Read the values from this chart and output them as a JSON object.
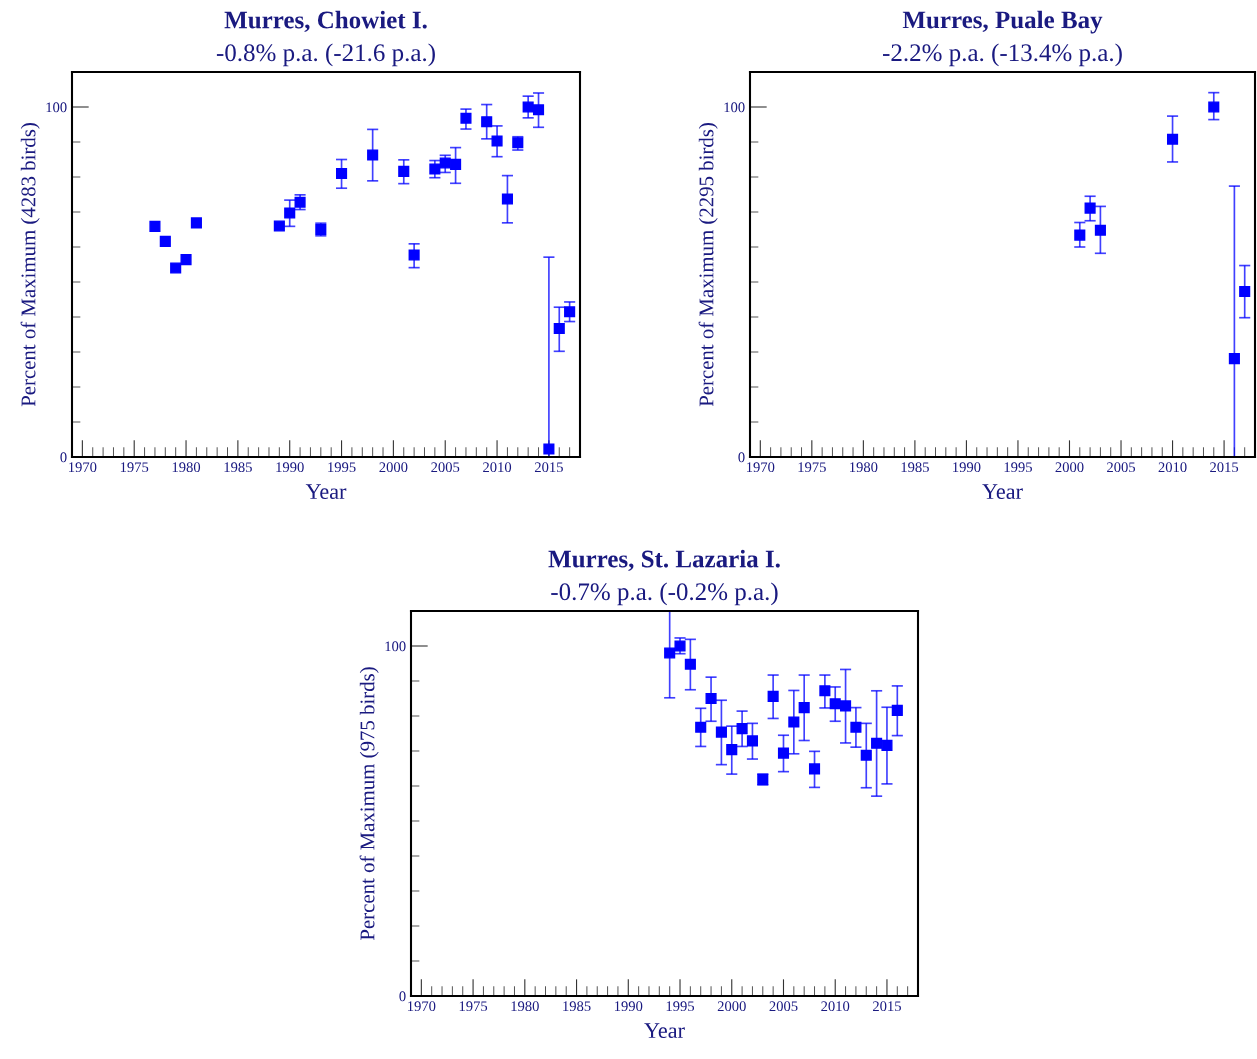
{
  "chart_data": [
    {
      "type": "scatter",
      "title": "Murres, Chowiet I.",
      "subtitle": "-0.8% p.a. (-21.6 p.a.)",
      "xlabel": "Year",
      "ylabel": "Percent of Maximum (4283 birds)",
      "color": "#0000ff",
      "marker": "square",
      "grid": false,
      "legend": false,
      "x": [
        1977,
        1978,
        1979,
        1980,
        1981,
        1989,
        1990,
        1991,
        1993,
        1995,
        1998,
        2001,
        2002,
        2004,
        2005,
        2006,
        2007,
        2009,
        2010,
        2011,
        2012,
        2013,
        2014,
        2015,
        2016,
        2017
      ],
      "values": [
        65.9,
        61.6,
        54.0,
        56.4,
        66.9,
        66.0,
        69.7,
        72.8,
        65.0,
        81.0,
        86.3,
        81.6,
        57.7,
        82.3,
        84.0,
        83.6,
        96.8,
        95.8,
        90.3,
        73.7,
        89.8,
        100,
        99.2,
        2.3,
        36.7,
        41.5
      ],
      "errors": [
        null,
        null,
        null,
        null,
        null,
        null,
        [
          65.9,
          73.4
        ],
        [
          70.7,
          74.9
        ],
        [
          63.2,
          66.8
        ],
        [
          76.8,
          85.0
        ],
        [
          78.9,
          93.6
        ],
        [
          78.1,
          84.9
        ],
        [
          54.1,
          60.9
        ],
        [
          79.8,
          84.7
        ],
        [
          81.3,
          86.2
        ],
        [
          78.2,
          88.4
        ],
        [
          93.7,
          99.4
        ],
        [
          90.9,
          100.7
        ],
        [
          85.8,
          94.6
        ],
        [
          66.9,
          80.4
        ],
        [
          87.7,
          91.5
        ],
        [
          96.9,
          103.1
        ],
        [
          94.2,
          104.0
        ],
        [
          0,
          57.1
        ],
        [
          30.2,
          42.8
        ],
        [
          38.7,
          44.3
        ]
      ],
      "xlim": [
        1969,
        2018
      ],
      "ylim": [
        0,
        110
      ],
      "xticks": [
        1970,
        {
          "value": 1971,
          "label": null
        },
        {
          "value": 1972,
          "label": null
        },
        {
          "value": 1973,
          "label": null
        },
        {
          "value": 1974,
          "label": null
        },
        1975,
        {
          "value": 1976,
          "label": null
        },
        {
          "value": 1977,
          "label": null
        },
        {
          "value": 1978,
          "label": null
        },
        {
          "value": 1979,
          "label": null
        },
        1980,
        {
          "value": 1981,
          "label": null
        },
        {
          "value": 1982,
          "label": null
        },
        {
          "value": 1983,
          "label": null
        },
        {
          "value": 1984,
          "label": null
        },
        1985,
        {
          "value": 1986,
          "label": null
        },
        {
          "value": 1987,
          "label": null
        },
        {
          "value": 1988,
          "label": null
        },
        {
          "value": 1989,
          "label": null
        },
        1990,
        {
          "value": 1991,
          "label": null
        },
        {
          "value": 1992,
          "label": null
        },
        {
          "value": 1993,
          "label": null
        },
        {
          "value": 1994,
          "label": null
        },
        1995,
        {
          "value": 1996,
          "label": null
        },
        {
          "value": 1997,
          "label": null
        },
        {
          "value": 1998,
          "label": null
        },
        {
          "value": 1999,
          "label": null
        },
        2000,
        {
          "value": 2001,
          "label": null
        },
        {
          "value": 2002,
          "label": null
        },
        {
          "value": 2003,
          "label": null
        },
        {
          "value": 2004,
          "label": null
        },
        2005,
        {
          "value": 2006,
          "label": null
        },
        {
          "value": 2007,
          "label": null
        },
        {
          "value": 2008,
          "label": null
        },
        {
          "value": 2009,
          "label": null
        },
        2010,
        {
          "value": 2011,
          "label": null
        },
        {
          "value": 2012,
          "label": null
        },
        {
          "value": 2013,
          "label": null
        },
        {
          "value": 2014,
          "label": null
        },
        2015,
        {
          "value": 2016,
          "label": null
        },
        {
          "value": 2017,
          "label": null
        }
      ],
      "yticks": [
        0,
        {
          "value": 10,
          "label": null
        },
        {
          "value": 20,
          "label": null
        },
        {
          "value": 30,
          "label": null
        },
        {
          "value": 40,
          "label": null
        },
        {
          "value": 50,
          "label": null
        },
        {
          "value": 60,
          "label": null
        },
        {
          "value": 70,
          "label": null
        },
        {
          "value": 80,
          "label": null
        },
        {
          "value": 90,
          "label": null
        },
        100
      ]
    },
    {
      "type": "scatter",
      "title": "Murres, Puale Bay",
      "subtitle": "-2.2% p.a. (-13.4% p.a.)",
      "xlabel": "Year",
      "ylabel": "Percent of Maximum (2295 birds)",
      "color": "#0000ff",
      "marker": "square",
      "grid": false,
      "legend": false,
      "x": [
        2001,
        2002,
        2003,
        2010,
        2014,
        2016,
        2017
      ],
      "values": [
        63.4,
        71.1,
        64.8,
        90.8,
        100,
        28.1,
        47.3
      ],
      "errors": [
        [
          60.0,
          67.0
        ],
        [
          67.5,
          74.5
        ],
        [
          58.2,
          71.6
        ],
        [
          84.3,
          97.4
        ],
        [
          96.4,
          104.1
        ],
        [
          0,
          77.4
        ],
        [
          39.8,
          54.7
        ]
      ],
      "xlim": [
        1969,
        2018
      ],
      "ylim": [
        0,
        110
      ],
      "xticks": [
        1970,
        {
          "value": 1971,
          "label": null
        },
        {
          "value": 1972,
          "label": null
        },
        {
          "value": 1973,
          "label": null
        },
        {
          "value": 1974,
          "label": null
        },
        1975,
        {
          "value": 1976,
          "label": null
        },
        {
          "value": 1977,
          "label": null
        },
        {
          "value": 1978,
          "label": null
        },
        {
          "value": 1979,
          "label": null
        },
        1980,
        {
          "value": 1981,
          "label": null
        },
        {
          "value": 1982,
          "label": null
        },
        {
          "value": 1983,
          "label": null
        },
        {
          "value": 1984,
          "label": null
        },
        1985,
        {
          "value": 1986,
          "label": null
        },
        {
          "value": 1987,
          "label": null
        },
        {
          "value": 1988,
          "label": null
        },
        {
          "value": 1989,
          "label": null
        },
        1990,
        {
          "value": 1991,
          "label": null
        },
        {
          "value": 1992,
          "label": null
        },
        {
          "value": 1993,
          "label": null
        },
        {
          "value": 1994,
          "label": null
        },
        1995,
        {
          "value": 1996,
          "label": null
        },
        {
          "value": 1997,
          "label": null
        },
        {
          "value": 1998,
          "label": null
        },
        {
          "value": 1999,
          "label": null
        },
        2000,
        {
          "value": 2001,
          "label": null
        },
        {
          "value": 2002,
          "label": null
        },
        {
          "value": 2003,
          "label": null
        },
        {
          "value": 2004,
          "label": null
        },
        2005,
        {
          "value": 2006,
          "label": null
        },
        {
          "value": 2007,
          "label": null
        },
        {
          "value": 2008,
          "label": null
        },
        {
          "value": 2009,
          "label": null
        },
        2010,
        {
          "value": 2011,
          "label": null
        },
        {
          "value": 2012,
          "label": null
        },
        {
          "value": 2013,
          "label": null
        },
        {
          "value": 2014,
          "label": null
        },
        2015,
        {
          "value": 2016,
          "label": null
        },
        {
          "value": 2017,
          "label": null
        }
      ],
      "yticks": [
        0,
        {
          "value": 10,
          "label": null
        },
        {
          "value": 20,
          "label": null
        },
        {
          "value": 30,
          "label": null
        },
        {
          "value": 40,
          "label": null
        },
        {
          "value": 50,
          "label": null
        },
        {
          "value": 60,
          "label": null
        },
        {
          "value": 70,
          "label": null
        },
        {
          "value": 80,
          "label": null
        },
        {
          "value": 90,
          "label": null
        },
        100
      ]
    },
    {
      "type": "scatter",
      "title": "Murres, St. Lazaria I.",
      "subtitle": "-0.7% p.a. (-0.2% p.a.)",
      "xlabel": "Year",
      "ylabel": "Percent of Maximum (975 birds)",
      "color": "#0000ff",
      "marker": "square",
      "grid": false,
      "legend": false,
      "x": [
        1994,
        1995,
        1996,
        1997,
        1998,
        1999,
        2000,
        2001,
        2002,
        2003,
        2004,
        2005,
        2006,
        2007,
        2008,
        2009,
        2010,
        2011,
        2012,
        2013,
        2014,
        2015,
        2016
      ],
      "values": [
        98.0,
        100,
        94.8,
        76.8,
        85.0,
        75.4,
        70.4,
        76.4,
        72.9,
        61.9,
        85.6,
        69.4,
        78.3,
        82.4,
        64.9,
        87.2,
        83.5,
        82.9,
        76.8,
        68.8,
        72.2,
        71.6,
        81.6
      ],
      "errors": [
        [
          85.2,
          110
        ],
        [
          97.8,
          102.3
        ],
        [
          87.5,
          101.9
        ],
        [
          71.3,
          82.2
        ],
        [
          78.5,
          91.1
        ],
        [
          66.1,
          84.5
        ],
        [
          63.4,
          77.1
        ],
        [
          71.3,
          81.4
        ],
        [
          67.7,
          77.9
        ],
        [
          60.3,
          63.4
        ],
        [
          79.3,
          91.7
        ],
        [
          64.1,
          74.5
        ],
        [
          69.2,
          87.3
        ],
        [
          73.0,
          91.7
        ],
        [
          59.6,
          69.9
        ],
        [
          82.3,
          91.7
        ],
        [
          78.5,
          88.3
        ],
        [
          72.3,
          93.3
        ],
        [
          71.1,
          82.4
        ],
        [
          59.5,
          77.9
        ],
        [
          57.1,
          87.2
        ],
        [
          60.6,
          82.5
        ],
        [
          74.4,
          88.6
        ]
      ],
      "xlim": [
        1969,
        2018
      ],
      "ylim": [
        0,
        110
      ],
      "xticks": [
        1970,
        {
          "value": 1971,
          "label": null
        },
        {
          "value": 1972,
          "label": null
        },
        {
          "value": 1973,
          "label": null
        },
        {
          "value": 1974,
          "label": null
        },
        1975,
        {
          "value": 1976,
          "label": null
        },
        {
          "value": 1977,
          "label": null
        },
        {
          "value": 1978,
          "label": null
        },
        {
          "value": 1979,
          "label": null
        },
        1980,
        {
          "value": 1981,
          "label": null
        },
        {
          "value": 1982,
          "label": null
        },
        {
          "value": 1983,
          "label": null
        },
        {
          "value": 1984,
          "label": null
        },
        1985,
        {
          "value": 1986,
          "label": null
        },
        {
          "value": 1987,
          "label": null
        },
        {
          "value": 1988,
          "label": null
        },
        {
          "value": 1989,
          "label": null
        },
        1990,
        {
          "value": 1991,
          "label": null
        },
        {
          "value": 1992,
          "label": null
        },
        {
          "value": 1993,
          "label": null
        },
        {
          "value": 1994,
          "label": null
        },
        1995,
        {
          "value": 1996,
          "label": null
        },
        {
          "value": 1997,
          "label": null
        },
        {
          "value": 1998,
          "label": null
        },
        {
          "value": 1999,
          "label": null
        },
        2000,
        {
          "value": 2001,
          "label": null
        },
        {
          "value": 2002,
          "label": null
        },
        {
          "value": 2003,
          "label": null
        },
        {
          "value": 2004,
          "label": null
        },
        2005,
        {
          "value": 2006,
          "label": null
        },
        {
          "value": 2007,
          "label": null
        },
        {
          "value": 2008,
          "label": null
        },
        {
          "value": 2009,
          "label": null
        },
        2010,
        {
          "value": 2011,
          "label": null
        },
        {
          "value": 2012,
          "label": null
        },
        {
          "value": 2013,
          "label": null
        },
        {
          "value": 2014,
          "label": null
        },
        2015,
        {
          "value": 2016,
          "label": null
        },
        {
          "value": 2017,
          "label": null
        }
      ],
      "yticks": [
        0,
        {
          "value": 10,
          "label": null
        },
        {
          "value": 20,
          "label": null
        },
        {
          "value": 30,
          "label": null
        },
        {
          "value": 40,
          "label": null
        },
        {
          "value": 50,
          "label": null
        },
        {
          "value": 60,
          "label": null
        },
        {
          "value": 70,
          "label": null
        },
        {
          "value": 80,
          "label": null
        },
        {
          "value": 90,
          "label": null
        },
        100
      ]
    }
  ]
}
